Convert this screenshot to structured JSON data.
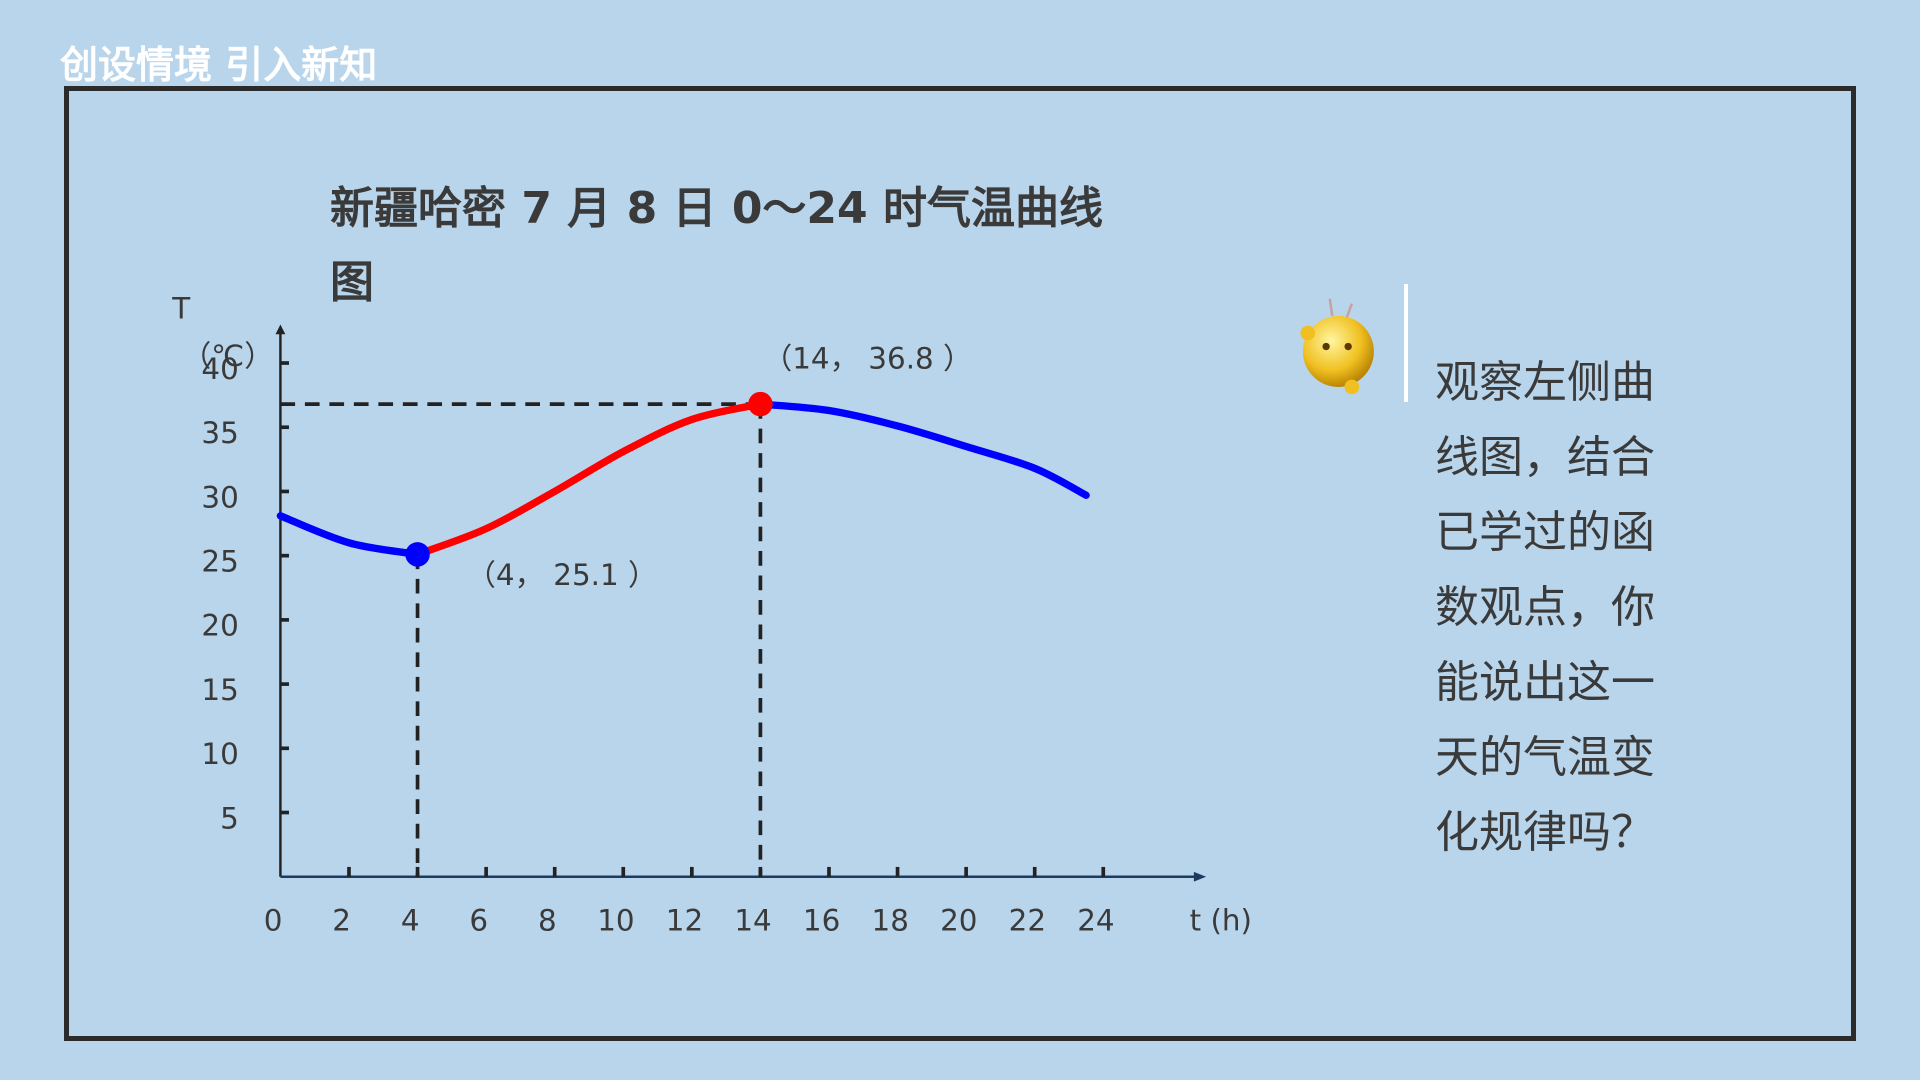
{
  "header": {
    "title": "创设情境 引入新知"
  },
  "side_text": "观察左侧曲线图，结合已学过的函数观点，你能说出这一天的气温变化规律吗？",
  "chart_data": {
    "type": "line",
    "title": "新疆哈密 7 月 8 日 0～24 时气温曲线图",
    "y_label": "T",
    "y_unit": "（℃）",
    "x_label": "t (h)",
    "x": [
      0,
      2,
      4,
      6,
      8,
      10,
      12,
      14,
      16,
      18,
      20,
      22,
      23.5
    ],
    "series": [
      {
        "color": "#0000ff",
        "values": [
          28.1,
          26.0,
          25.1,
          null,
          null,
          null,
          null,
          null,
          null,
          null,
          null,
          null,
          null
        ]
      },
      {
        "color": "#ff0000",
        "values": [
          null,
          null,
          25.1,
          27.1,
          30.0,
          33.1,
          35.6,
          36.8,
          null,
          null,
          null,
          null,
          null
        ]
      },
      {
        "color": "#0000ff",
        "values": [
          null,
          null,
          null,
          null,
          null,
          null,
          null,
          36.8,
          36.3,
          35.1,
          33.5,
          31.8,
          29.7
        ]
      }
    ],
    "annotations": [
      {
        "text": "（4，  25.1 ）",
        "x": 4,
        "y": 25.1,
        "color": "#0000ff"
      },
      {
        "text": "（14，  36.8 ）",
        "x": 14,
        "y": 36.8,
        "color": "#ff0000"
      }
    ],
    "xlim": [
      0,
      27
    ],
    "ylim": [
      0,
      43
    ],
    "xticks": [
      0,
      2,
      4,
      6,
      8,
      10,
      12,
      14,
      16,
      18,
      20,
      22,
      24
    ],
    "yticks": [
      5,
      10,
      15,
      20,
      25,
      30,
      35,
      40
    ],
    "grid": false
  }
}
